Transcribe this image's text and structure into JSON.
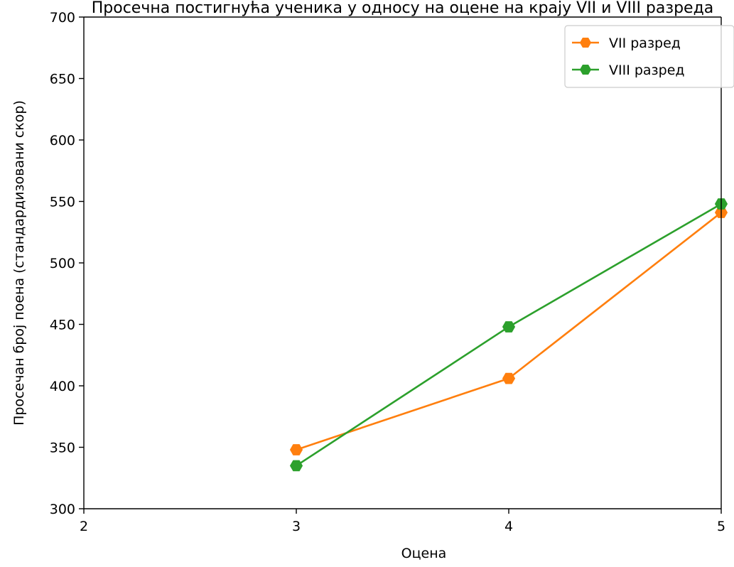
{
  "chart_data": {
    "type": "line",
    "title": "Просечна постигнућа ученика у односу на оцене на крају VII и VIII разреда",
    "xlabel": "Оцена",
    "ylabel": "Просечан број поена (стандардизовани скор)",
    "x": [
      3,
      4,
      5
    ],
    "xlim": [
      2,
      5
    ],
    "ylim": [
      300,
      700
    ],
    "xticks": [
      2,
      3,
      4,
      5
    ],
    "yticks": [
      300,
      350,
      400,
      450,
      500,
      550,
      600,
      650,
      700
    ],
    "grid": false,
    "legend_position": "top-right",
    "series": [
      {
        "name": "VII разред",
        "color": "#ff7f0e",
        "marker": "hexagon",
        "values": [
          348,
          406,
          541
        ]
      },
      {
        "name": "VIII разред",
        "color": "#2ca02c",
        "marker": "hexagon",
        "values": [
          335,
          448,
          548
        ]
      }
    ]
  }
}
